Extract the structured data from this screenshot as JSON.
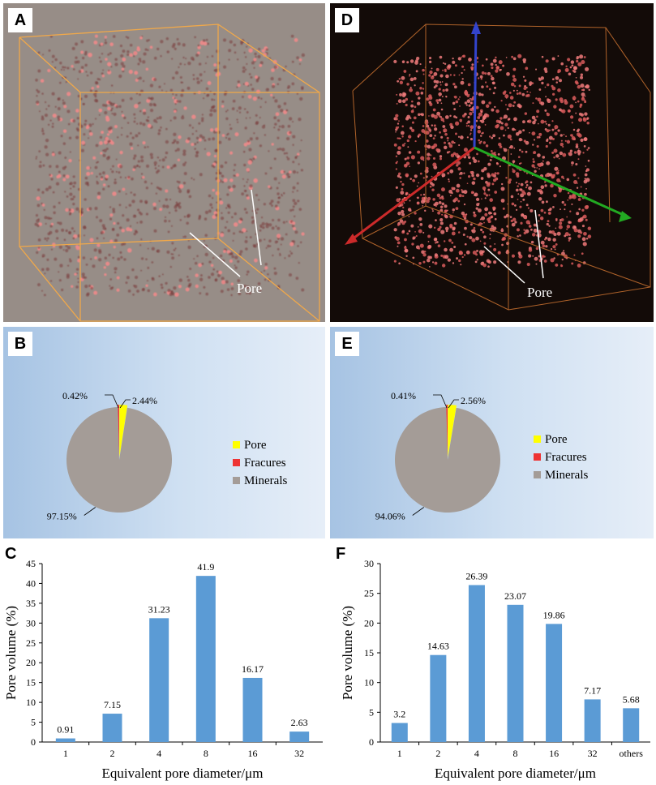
{
  "panels": {
    "a": {
      "letter": "A",
      "pore_label": "Pore"
    },
    "d": {
      "letter": "D",
      "pore_label": "Pore"
    },
    "b": {
      "letter": "B"
    },
    "e": {
      "letter": "E"
    },
    "c": {
      "letter": "C"
    },
    "f": {
      "letter": "F"
    }
  },
  "colors": {
    "pore": "#ffff00",
    "fractures": "#ee3333",
    "minerals": "#a49c97",
    "bar": "#5b9bd5",
    "render_a_bg": "#978d87",
    "render_d_bg": "#130b08",
    "pore_dots": "#e87a7a"
  },
  "chart_data": [
    {
      "id": "B",
      "type": "pie",
      "slices": [
        {
          "name": "Pore",
          "value": 2.44,
          "label": "2.44%"
        },
        {
          "name": "Fracures",
          "value": 0.42,
          "label": "0.42%"
        },
        {
          "name": "Minerals",
          "value": 97.15,
          "label": "97.15%"
        }
      ],
      "legend": [
        "Pore",
        "Fracures",
        "Minerals"
      ]
    },
    {
      "id": "E",
      "type": "pie",
      "slices": [
        {
          "name": "Pore",
          "value": 2.56,
          "label": "2.56%"
        },
        {
          "name": "Fracures",
          "value": 0.41,
          "label": "0.41%"
        },
        {
          "name": "Minerals",
          "value": 94.06,
          "label": "94.06%"
        }
      ],
      "legend": [
        "Pore",
        "Fracures",
        "Minerals"
      ]
    },
    {
      "id": "C",
      "type": "bar",
      "categories": [
        "1",
        "2",
        "4",
        "8",
        "16",
        "32"
      ],
      "values": [
        0.91,
        7.15,
        31.23,
        41.9,
        16.17,
        2.63
      ],
      "value_labels": [
        "0.91",
        "7.15",
        "31.23",
        "41.9",
        "16.17",
        "2.63"
      ],
      "xlabel": "Equivalent pore diameter/μm",
      "ylabel": "Pore volume (%)",
      "ylim": [
        0,
        45
      ],
      "yticks": [
        "0",
        "5",
        "10",
        "15",
        "20",
        "25",
        "30",
        "35",
        "40",
        "45"
      ]
    },
    {
      "id": "F",
      "type": "bar",
      "categories": [
        "1",
        "2",
        "4",
        "8",
        "16",
        "32",
        "others"
      ],
      "values": [
        3.2,
        14.63,
        26.39,
        23.07,
        19.86,
        7.17,
        5.68
      ],
      "value_labels": [
        "3.2",
        "14.63",
        "26.39",
        "23.07",
        "19.86",
        "7.17",
        "5.68"
      ],
      "xlabel": "Equivalent pore diameter/μm",
      "ylabel": "Pore volume (%)",
      "ylim": [
        0,
        30
      ],
      "yticks": [
        "0",
        "5",
        "10",
        "15",
        "20",
        "25",
        "30"
      ]
    }
  ]
}
